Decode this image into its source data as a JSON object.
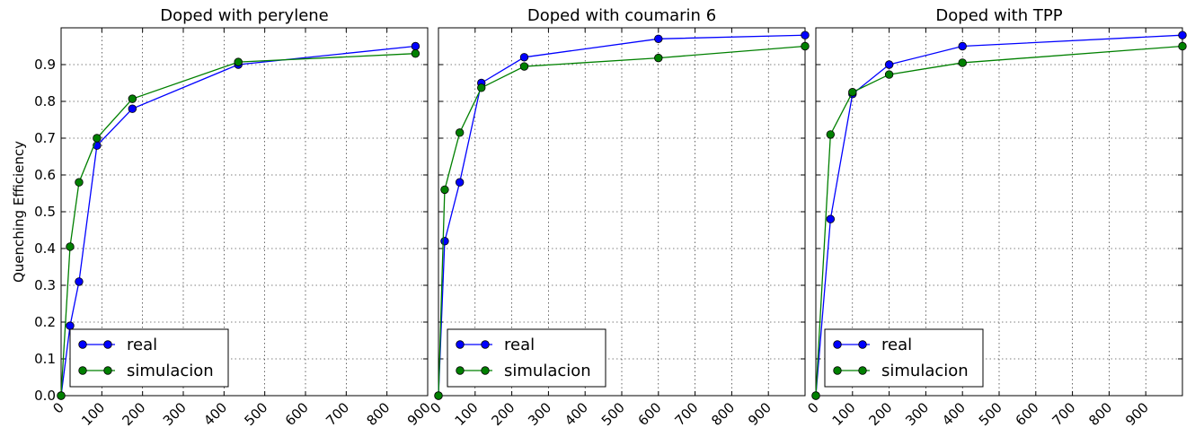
{
  "ylabel": "Quenching Efficiency",
  "legend_entries": [
    "real",
    "simulacion"
  ],
  "colors": {
    "real": "#0000ff",
    "simulacion": "#008000"
  },
  "chart_data": [
    {
      "type": "line",
      "title": "Doped with perylene",
      "xlim": [
        0,
        900
      ],
      "ylim": [
        0,
        1.0
      ],
      "xticks": [
        "0",
        "100",
        "200",
        "300",
        "400",
        "500",
        "600",
        "700",
        "800",
        "900"
      ],
      "yticks": [
        "0.0",
        "0.1",
        "0.2",
        "0.3",
        "0.4",
        "0.5",
        "0.6",
        "0.7",
        "0.8",
        "0.9"
      ],
      "grid": true,
      "legend": "lower left",
      "series": [
        {
          "name": "real",
          "x": [
            0,
            22,
            44,
            88,
            175,
            435,
            870
          ],
          "y": [
            0.0,
            0.19,
            0.31,
            0.68,
            0.78,
            0.9,
            0.95
          ]
        },
        {
          "name": "simulacion",
          "x": [
            0,
            22,
            44,
            88,
            175,
            435,
            870
          ],
          "y": [
            0.0,
            0.405,
            0.58,
            0.7,
            0.807,
            0.907,
            0.93
          ]
        }
      ]
    },
    {
      "type": "line",
      "title": "Doped with coumarin 6",
      "xlim": [
        0,
        1000
      ],
      "ylim": [
        0,
        1.0
      ],
      "xticks": [
        "0",
        "100",
        "200",
        "300",
        "400",
        "500",
        "600",
        "700",
        "800",
        "900"
      ],
      "grid": true,
      "legend": "lower left",
      "series": [
        {
          "name": "real",
          "x": [
            0,
            17,
            58,
            117,
            234,
            600,
            1000
          ],
          "y": [
            0.0,
            0.42,
            0.58,
            0.85,
            0.92,
            0.97,
            0.98
          ]
        },
        {
          "name": "simulacion",
          "x": [
            0,
            17,
            58,
            117,
            234,
            600,
            1000
          ],
          "y": [
            0.0,
            0.56,
            0.715,
            0.837,
            0.895,
            0.918,
            0.95
          ]
        }
      ]
    },
    {
      "type": "line",
      "title": "Doped with TPP",
      "xlim": [
        0,
        1000
      ],
      "ylim": [
        0,
        1.0
      ],
      "xticks": [
        "0",
        "100",
        "200",
        "300",
        "400",
        "500",
        "600",
        "700",
        "800",
        "900"
      ],
      "grid": true,
      "legend": "lower left",
      "series": [
        {
          "name": "real",
          "x": [
            0,
            40,
            100,
            200,
            400,
            1000
          ],
          "y": [
            0.0,
            0.48,
            0.82,
            0.9,
            0.95,
            0.98
          ]
        },
        {
          "name": "simulacion",
          "x": [
            0,
            40,
            100,
            200,
            400,
            1000
          ],
          "y": [
            0.0,
            0.71,
            0.825,
            0.873,
            0.905,
            0.95
          ]
        }
      ]
    }
  ]
}
